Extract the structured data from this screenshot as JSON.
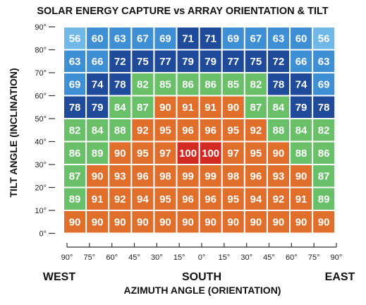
{
  "chart_data": {
    "type": "heatmap",
    "title": "SOLAR ENERGY CAPTURE vs ARRAY ORIENTATION & TILT",
    "ylabel": "TILT ANGLE (INCLINATION)",
    "xlabel": "AZIMUTH ANGLE (ORIENTATION)",
    "x_tick_labels": [
      "90°",
      "75°",
      "60°",
      "45°",
      "30°",
      "15°",
      "0°",
      "15°",
      "30°",
      "45°",
      "60°",
      "75°",
      "90°"
    ],
    "x_direction_labels": {
      "left": "WEST",
      "center": "SOUTH",
      "right": "EAST"
    },
    "y_tick_labels": [
      "90°",
      "80°",
      "70°",
      "60°",
      "50°",
      "40°",
      "30°",
      "20°",
      "10°",
      "0°"
    ],
    "rows": [
      {
        "tilt": "90°",
        "values": [
          56,
          60,
          63,
          67,
          69,
          71,
          71,
          69,
          67,
          63,
          60,
          56
        ]
      },
      {
        "tilt": "80°",
        "values": [
          63,
          66,
          72,
          75,
          77,
          79,
          79,
          77,
          75,
          72,
          66,
          63
        ]
      },
      {
        "tilt": "70°",
        "values": [
          69,
          74,
          78,
          82,
          85,
          86,
          86,
          85,
          82,
          78,
          74,
          69
        ]
      },
      {
        "tilt": "60°",
        "values": [
          78,
          79,
          84,
          87,
          90,
          91,
          91,
          90,
          87,
          84,
          79,
          78
        ]
      },
      {
        "tilt": "50°",
        "values": [
          82,
          84,
          88,
          92,
          95,
          96,
          96,
          95,
          92,
          88,
          84,
          82
        ]
      },
      {
        "tilt": "40°",
        "values": [
          86,
          89,
          90,
          95,
          97,
          100,
          100,
          97,
          95,
          90,
          88,
          86
        ]
      },
      {
        "tilt": "30°",
        "values": [
          87,
          90,
          93,
          96,
          98,
          99,
          99,
          98,
          96,
          93,
          90,
          87
        ]
      },
      {
        "tilt": "20°",
        "values": [
          89,
          91,
          92,
          94,
          95,
          96,
          96,
          95,
          94,
          92,
          91,
          89
        ]
      },
      {
        "tilt": "10°",
        "values": [
          90,
          90,
          90,
          90,
          90,
          90,
          90,
          90,
          90,
          90,
          90,
          90
        ]
      }
    ],
    "colors": {
      "light_blue": "#6fb8e8",
      "mid_blue": "#3f8fd4",
      "dark_blue": "#1f4b9a",
      "green": "#6abf69",
      "orange": "#df6f2a",
      "red": "#d42a24",
      "cell_text": "#ffffff"
    },
    "cell_colors": [
      [
        "light_blue",
        "mid_blue",
        "mid_blue",
        "mid_blue",
        "mid_blue",
        "dark_blue",
        "dark_blue",
        "mid_blue",
        "mid_blue",
        "mid_blue",
        "mid_blue",
        "light_blue"
      ],
      [
        "mid_blue",
        "mid_blue",
        "dark_blue",
        "dark_blue",
        "dark_blue",
        "dark_blue",
        "dark_blue",
        "dark_blue",
        "dark_blue",
        "dark_blue",
        "mid_blue",
        "mid_blue"
      ],
      [
        "mid_blue",
        "dark_blue",
        "dark_blue",
        "green",
        "green",
        "green",
        "green",
        "green",
        "green",
        "dark_blue",
        "dark_blue",
        "mid_blue"
      ],
      [
        "dark_blue",
        "dark_blue",
        "green",
        "green",
        "orange",
        "orange",
        "orange",
        "orange",
        "green",
        "green",
        "dark_blue",
        "dark_blue"
      ],
      [
        "green",
        "green",
        "green",
        "orange",
        "orange",
        "orange",
        "orange",
        "orange",
        "orange",
        "green",
        "green",
        "green"
      ],
      [
        "green",
        "green",
        "orange",
        "orange",
        "orange",
        "red",
        "red",
        "orange",
        "orange",
        "orange",
        "green",
        "green"
      ],
      [
        "green",
        "orange",
        "orange",
        "orange",
        "orange",
        "orange",
        "orange",
        "orange",
        "orange",
        "orange",
        "orange",
        "green"
      ],
      [
        "green",
        "orange",
        "orange",
        "orange",
        "orange",
        "orange",
        "orange",
        "orange",
        "orange",
        "orange",
        "orange",
        "green"
      ],
      [
        "orange",
        "orange",
        "orange",
        "orange",
        "orange",
        "orange",
        "orange",
        "orange",
        "orange",
        "orange",
        "orange",
        "orange"
      ]
    ]
  }
}
